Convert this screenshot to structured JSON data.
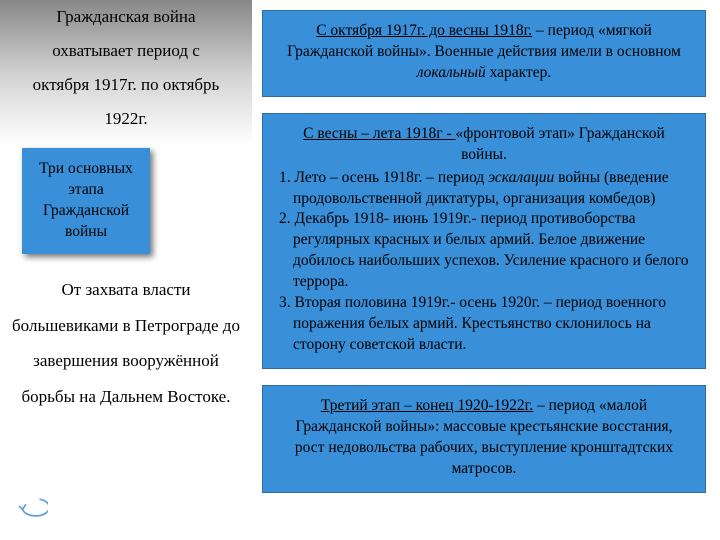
{
  "colors": {
    "blue_fill": "#3a8fd9",
    "blue_border": "#2c6da6",
    "grad_top": "#878787",
    "grad_mid": "#d2d2d2",
    "grad_bottom": "#ffffff",
    "text": "#000000",
    "arrow_stroke": "#5aa0d6"
  },
  "left": {
    "intro_html": "Гражданская война охватывает период с октября 1917г. по октябрь 1922г.",
    "chip_html": "Три основных этапа Гражданской войны",
    "para_html": "От захвата власти большевиками в Петрограде до завершения вооружённой борьбы на Дальнем Востоке."
  },
  "stages": {
    "s1_html": "<span class=\"u\">С октября 1917г. до весны 1918г.</span> – период «мягкой Гражданской войны». Военные действия имели в основном <span class=\"i\">локальный</span> характер.",
    "s2_lead_html": "<span class=\"u\">С весны – лета 1918г - </span> «фронтовой этап» Гражданской войны.",
    "s2_items": [
      "Лето – осень 1918г. – период <span class=\"i\">эскалации</span> войны (введение продовольственной диктатуры, организация комбедов)",
      "Декабрь 1918- июнь 1919г.- период противоборства регулярных красных и белых армий. Белое движение добилось наибольших успехов. Усиление красного и белого террора.",
      "Вторая половина 1919г.- осень 1920г. – период военного поражения белых армий. Крестьянство склонилось на сторону советской власти."
    ],
    "s3_html": "<span class=\"u\">Третий этап – конец 1920-1922г.</span> – период «малой Гражданской войны»: массовые крестьянские восстания, рост недовольства рабочих, выступление кронштадтских матросов."
  }
}
